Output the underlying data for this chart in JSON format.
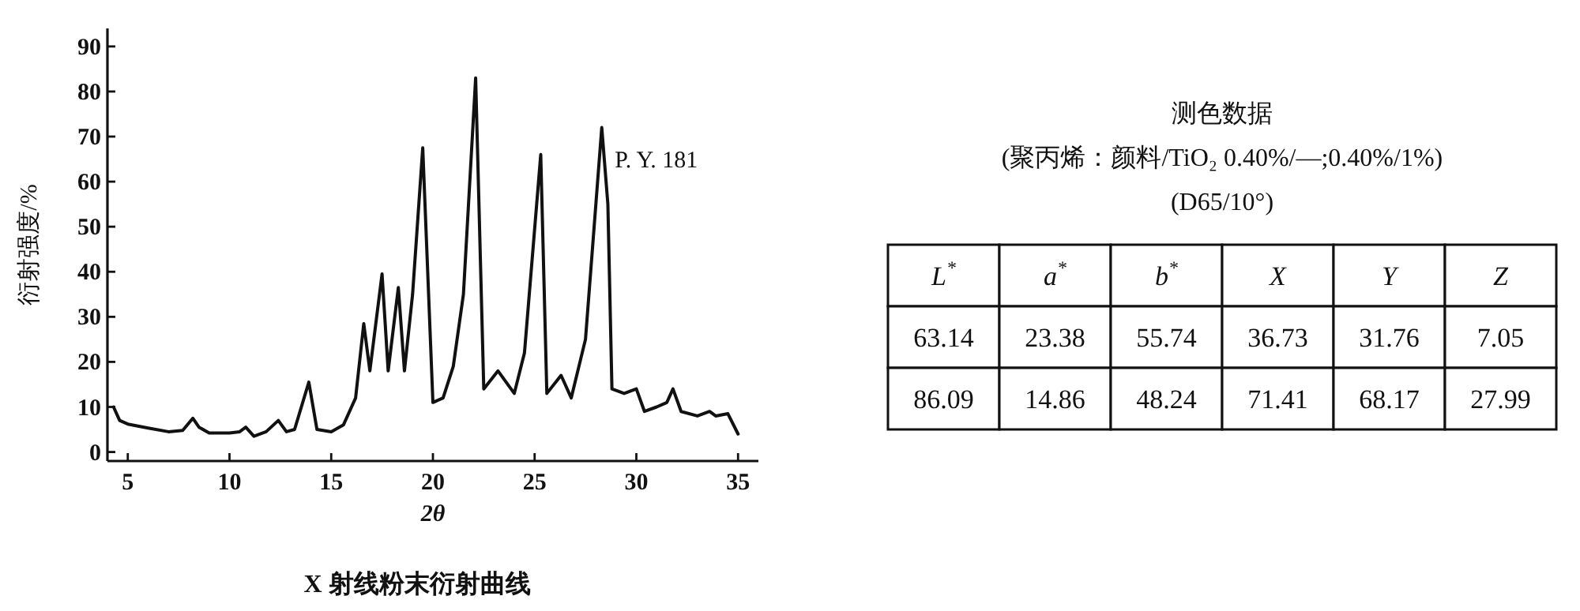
{
  "chart_data": [
    {
      "type": "line",
      "title": "X 射线粉末衍射曲线",
      "xlabel": "2θ",
      "ylabel": "衍射强度/%",
      "xlim": [
        4,
        36
      ],
      "ylim": [
        -2,
        94
      ],
      "xticks": [
        5,
        10,
        15,
        20,
        25,
        30,
        35
      ],
      "yticks": [
        0,
        10,
        20,
        30,
        40,
        50,
        60,
        70,
        80,
        90
      ],
      "grid": false,
      "marker": "none",
      "line_style": "solid",
      "annotations": [
        {
          "text": "P. Y. 181",
          "x": 28.4,
          "y": 72
        }
      ],
      "series": [
        {
          "color": "#111111",
          "x": [
            4.3,
            4.6,
            5,
            6,
            7,
            7.7,
            8.2,
            8.5,
            9,
            10,
            10.5,
            10.8,
            11.2,
            11.8,
            12.4,
            12.8,
            13.2,
            13.9,
            14.3,
            15,
            15.6,
            16.2,
            16.6,
            16.9,
            17.5,
            17.8,
            18.3,
            18.6,
            19,
            19.5,
            20,
            20.5,
            21,
            21.5,
            22.1,
            22.5,
            23.2,
            24,
            24.5,
            25.3,
            25.6,
            26.3,
            26.8,
            27.5,
            28.3,
            28.6,
            28.8,
            29.4,
            30,
            30.4,
            31,
            31.5,
            31.8,
            32.2,
            33,
            33.6,
            33.9,
            34.5,
            35
          ],
          "values": [
            10,
            7,
            6.2,
            5.3,
            4.5,
            4.8,
            7.5,
            5.5,
            4.2,
            4.2,
            4.5,
            5.5,
            3.5,
            4.5,
            7,
            4.5,
            5,
            15.5,
            5,
            4.5,
            6,
            12,
            28.5,
            18,
            39.5,
            18,
            36.5,
            18,
            35,
            67.5,
            11,
            12,
            19,
            35,
            83,
            14,
            18,
            13,
            22,
            66,
            13,
            17,
            12,
            25,
            72,
            55,
            14,
            13,
            14,
            9,
            10,
            11,
            14,
            9,
            8,
            9,
            8,
            8.5,
            4
          ]
        }
      ]
    },
    {
      "type": "other",
      "title": "测色数据",
      "subtitle": "(聚丙烯：颜料/TiO₂ 0.40%/—;0.40%/1%)",
      "annotations": [
        "(D65/10°)"
      ],
      "data_labels": true,
      "categories": [
        "L$^{*}$",
        "a$^{*}$",
        "b$^{*}$",
        "X",
        "Y",
        "Z"
      ],
      "series": [
        {
          "values": [
            63.14,
            23.38,
            55.74,
            36.73,
            31.76,
            7.05
          ]
        },
        {
          "values": [
            86.09,
            14.86,
            48.24,
            71.41,
            68.17,
            27.99
          ]
        }
      ]
    }
  ]
}
